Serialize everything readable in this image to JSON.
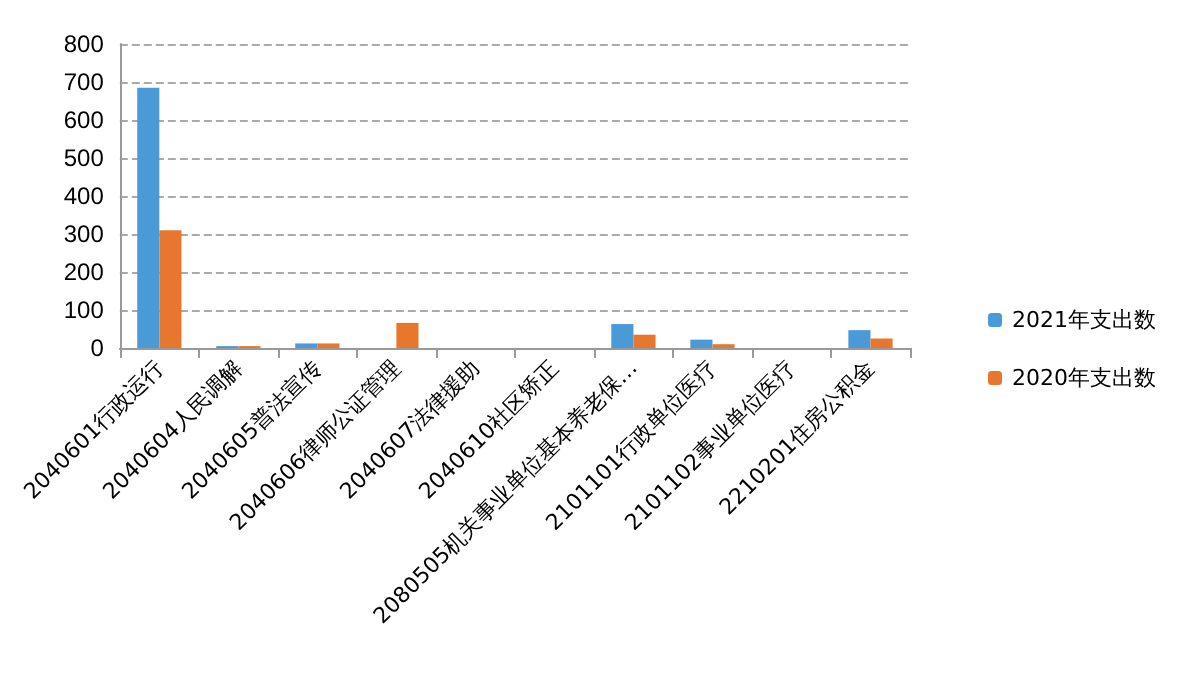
{
  "chart_data": {
    "type": "bar",
    "categories": [
      "2040601行政运行",
      "2040604人民调解",
      "2040605普法宣传",
      "2040606律师公证管理",
      "2040607法律援助",
      "2040610社区矫正",
      "2080505机关事业单位基本养老保…",
      "2101101行政单位医疗",
      "2101102事业单位医疗",
      "2210201住房公积金"
    ],
    "series": [
      {
        "name": "2021年支出数",
        "color": "#4a9ad8",
        "values": [
          685,
          5,
          12,
          0,
          0,
          0,
          63,
          22,
          0,
          47
        ]
      },
      {
        "name": "2020年支出数",
        "color": "#e8772e",
        "values": [
          310,
          5,
          12,
          66,
          0,
          0,
          35,
          10,
          0,
          25
        ]
      }
    ],
    "ylim": [
      0,
      800
    ],
    "yticks": [
      0,
      100,
      200,
      300,
      400,
      500,
      600,
      700,
      800
    ],
    "grid": "y",
    "legend": "right"
  }
}
